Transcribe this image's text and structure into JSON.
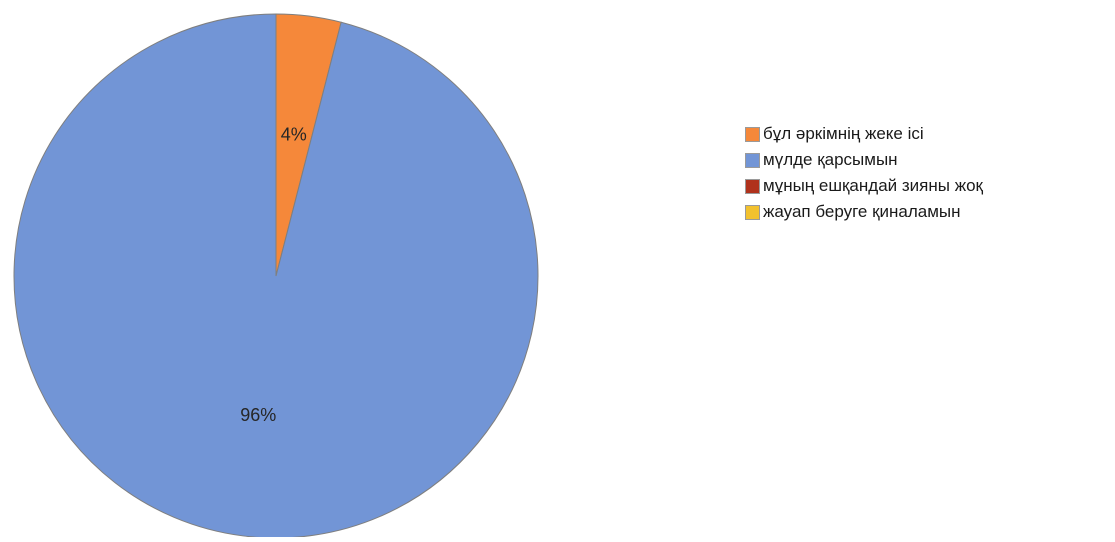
{
  "chart_data": {
    "type": "pie",
    "title": "",
    "slices": [
      {
        "label": "бұл әркімнің жеке ісі",
        "value": 4,
        "data_label": "4%",
        "color": "#f5883a"
      },
      {
        "label": "мүлде қарсымын",
        "value": 96,
        "data_label": "96%",
        "color": "#7295d6"
      },
      {
        "label": "мұның ешқандай зияны жоқ",
        "value": 0,
        "data_label": "",
        "color": "#b0321c"
      },
      {
        "label": "жауап беруге қиналамын",
        "value": 0,
        "data_label": "",
        "color": "#f2c12e"
      }
    ],
    "legend_position": "right",
    "start_angle": "top",
    "direction": "clockwise"
  }
}
